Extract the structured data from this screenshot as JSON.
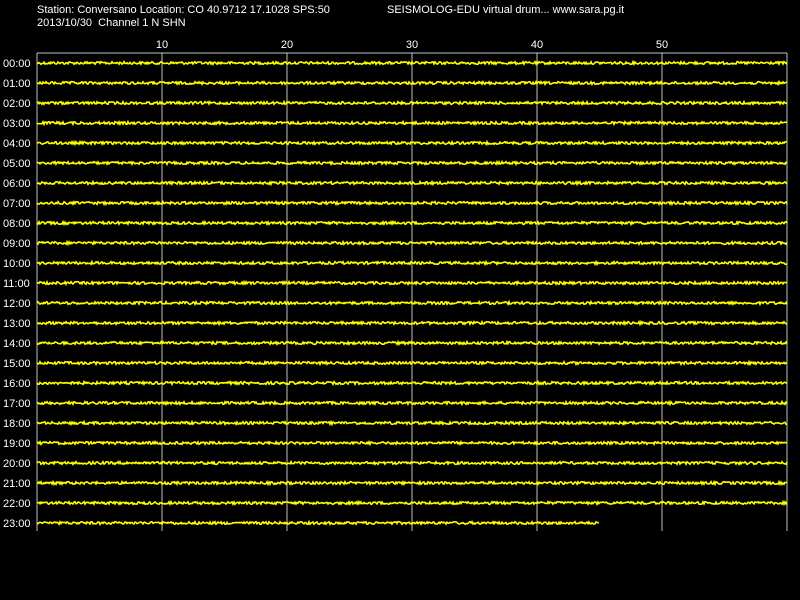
{
  "header": {
    "station_line": "Station: Conversano Location: CO 40.9712 17.1028 SPS:50",
    "date_line": "2013/10/30  Channel 1 N SHN",
    "title_right": "SEISMOLOG-EDU virtual drum... www.sara.pg.it"
  },
  "colors": {
    "background": "#000000",
    "trace": "#ffff00",
    "grid": "#c0c0c0",
    "text": "#ffffff"
  },
  "chart_data": {
    "type": "line",
    "x_unit": "minutes",
    "xlim": [
      0,
      60
    ],
    "x_ticks": [
      10,
      20,
      30,
      40,
      50
    ],
    "grid": true,
    "rows": [
      {
        "label": "00:00",
        "end_minute": 60
      },
      {
        "label": "01:00",
        "end_minute": 60
      },
      {
        "label": "02:00",
        "end_minute": 60
      },
      {
        "label": "03:00",
        "end_minute": 60
      },
      {
        "label": "04:00",
        "end_minute": 60
      },
      {
        "label": "05:00",
        "end_minute": 60
      },
      {
        "label": "06:00",
        "end_minute": 60
      },
      {
        "label": "07:00",
        "end_minute": 60
      },
      {
        "label": "08:00",
        "end_minute": 60
      },
      {
        "label": "09:00",
        "end_minute": 60
      },
      {
        "label": "10:00",
        "end_minute": 60
      },
      {
        "label": "11:00",
        "end_minute": 60
      },
      {
        "label": "12:00",
        "end_minute": 60
      },
      {
        "label": "13:00",
        "end_minute": 60
      },
      {
        "label": "14:00",
        "end_minute": 60
      },
      {
        "label": "15:00",
        "end_minute": 60
      },
      {
        "label": "16:00",
        "end_minute": 60
      },
      {
        "label": "17:00",
        "end_minute": 60
      },
      {
        "label": "18:00",
        "end_minute": 60
      },
      {
        "label": "19:00",
        "end_minute": 60
      },
      {
        "label": "20:00",
        "end_minute": 60
      },
      {
        "label": "21:00",
        "end_minute": 60
      },
      {
        "label": "22:00",
        "end_minute": 60
      },
      {
        "label": "23:00",
        "end_minute": 45
      }
    ]
  }
}
